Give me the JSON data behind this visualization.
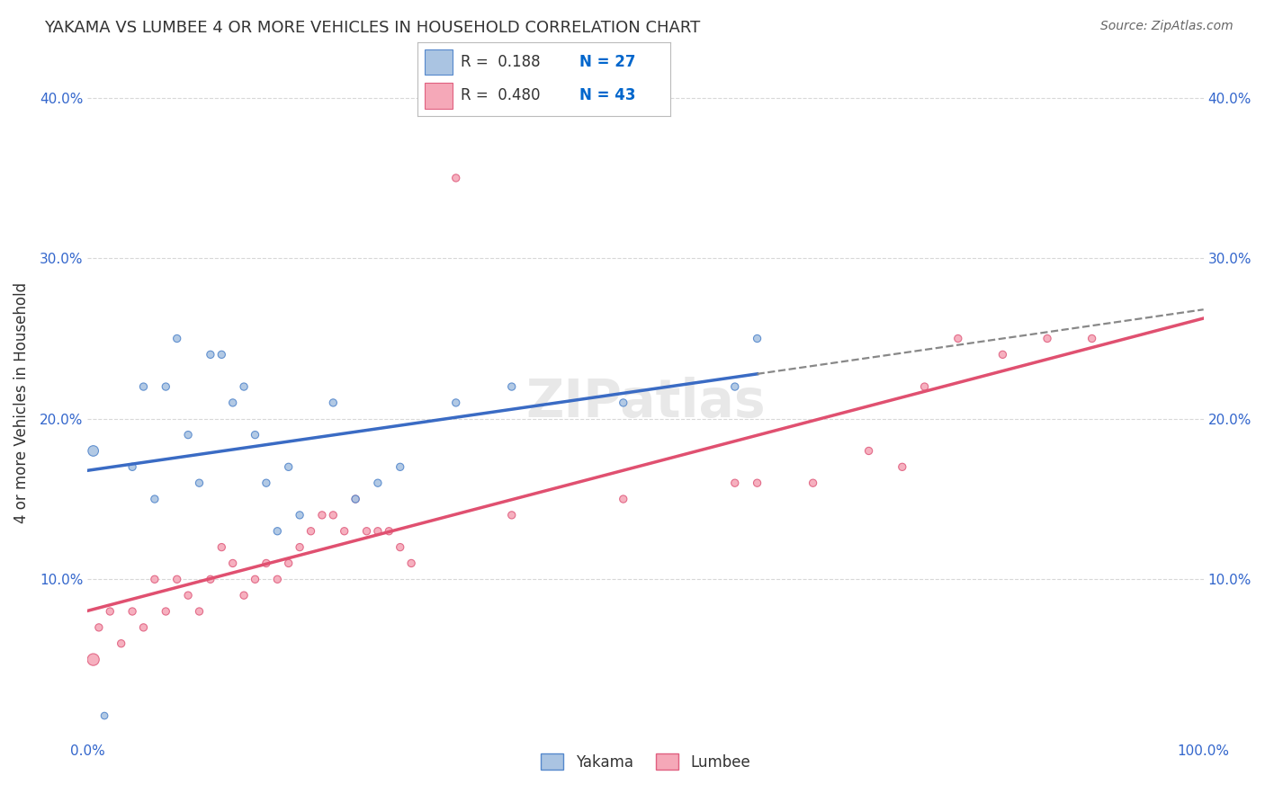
{
  "title": "YAKAMA VS LUMBEE 4 OR MORE VEHICLES IN HOUSEHOLD CORRELATION CHART",
  "source": "Source: ZipAtlas.com",
  "ylabel_label": "4 or more Vehicles in Household",
  "xlim": [
    0,
    100
  ],
  "ylim": [
    0,
    42
  ],
  "yticks": [
    10,
    20,
    30,
    40
  ],
  "xticks": [
    0,
    100
  ],
  "legend_r1": "0.188",
  "legend_n1": "27",
  "legend_r2": "0.480",
  "legend_n2": "43",
  "watermark": "ZIPatlas",
  "background_color": "#ffffff",
  "grid_color": "#d8d8d8",
  "yakama_x": [
    0.5,
    1.5,
    4,
    5,
    6,
    7,
    8,
    9,
    10,
    11,
    12,
    13,
    14,
    15,
    16,
    17,
    18,
    19,
    22,
    24,
    26,
    28,
    33,
    38,
    48,
    58,
    60
  ],
  "yakama_y": [
    18,
    1.5,
    17,
    22,
    15,
    22,
    25,
    19,
    16,
    24,
    24,
    21,
    22,
    19,
    16,
    13,
    17,
    14,
    21,
    15,
    16,
    17,
    21,
    22,
    21,
    22,
    25
  ],
  "yakama_sizes": [
    70,
    30,
    35,
    35,
    35,
    35,
    35,
    35,
    35,
    35,
    35,
    35,
    35,
    35,
    35,
    35,
    35,
    35,
    35,
    35,
    35,
    35,
    35,
    35,
    35,
    35,
    35
  ],
  "lumbee_x": [
    0.5,
    1,
    2,
    3,
    4,
    5,
    6,
    7,
    8,
    9,
    10,
    11,
    12,
    13,
    14,
    15,
    16,
    17,
    18,
    19,
    20,
    21,
    22,
    23,
    24,
    25,
    26,
    27,
    28,
    29,
    33,
    38,
    48,
    58,
    60,
    65,
    70,
    73,
    75,
    78,
    82,
    86,
    90
  ],
  "lumbee_y": [
    5,
    7,
    8,
    6,
    8,
    7,
    10,
    8,
    10,
    9,
    8,
    10,
    12,
    11,
    9,
    10,
    11,
    10,
    11,
    12,
    13,
    14,
    14,
    13,
    15,
    13,
    13,
    13,
    12,
    11,
    35,
    14,
    15,
    16,
    16,
    16,
    18,
    17,
    22,
    25,
    24,
    25,
    25
  ],
  "lumbee_sizes_scale": [
    90,
    35,
    35,
    35,
    35,
    35,
    35,
    35,
    35,
    35,
    35,
    35,
    35,
    35,
    35,
    35,
    35,
    35,
    35,
    35,
    35,
    35,
    35,
    35,
    35,
    35,
    35,
    35,
    35,
    35,
    35,
    35,
    35,
    35,
    35,
    35,
    35,
    35,
    35,
    35,
    35,
    35,
    35
  ],
  "yakama_color": "#aac4e2",
  "lumbee_color": "#f5a8b8",
  "yakama_edge": "#5588cc",
  "lumbee_edge": "#e06080",
  "trendline_yakama_color": "#3a6bc4",
  "trendline_lumbee_color": "#e05070",
  "trendline_lw": 2.5,
  "dashed_color": "#888888",
  "dashed_lw": 1.6,
  "legend_box_yakama": "#aac4e2",
  "legend_box_lumbee": "#f5a8b8",
  "legend_r_color": "#0066cc",
  "legend_n_color": "#0066cc",
  "axis_tick_color": "#3366cc",
  "ylabel_color": "#333333",
  "title_color": "#333333",
  "source_color": "#666666"
}
